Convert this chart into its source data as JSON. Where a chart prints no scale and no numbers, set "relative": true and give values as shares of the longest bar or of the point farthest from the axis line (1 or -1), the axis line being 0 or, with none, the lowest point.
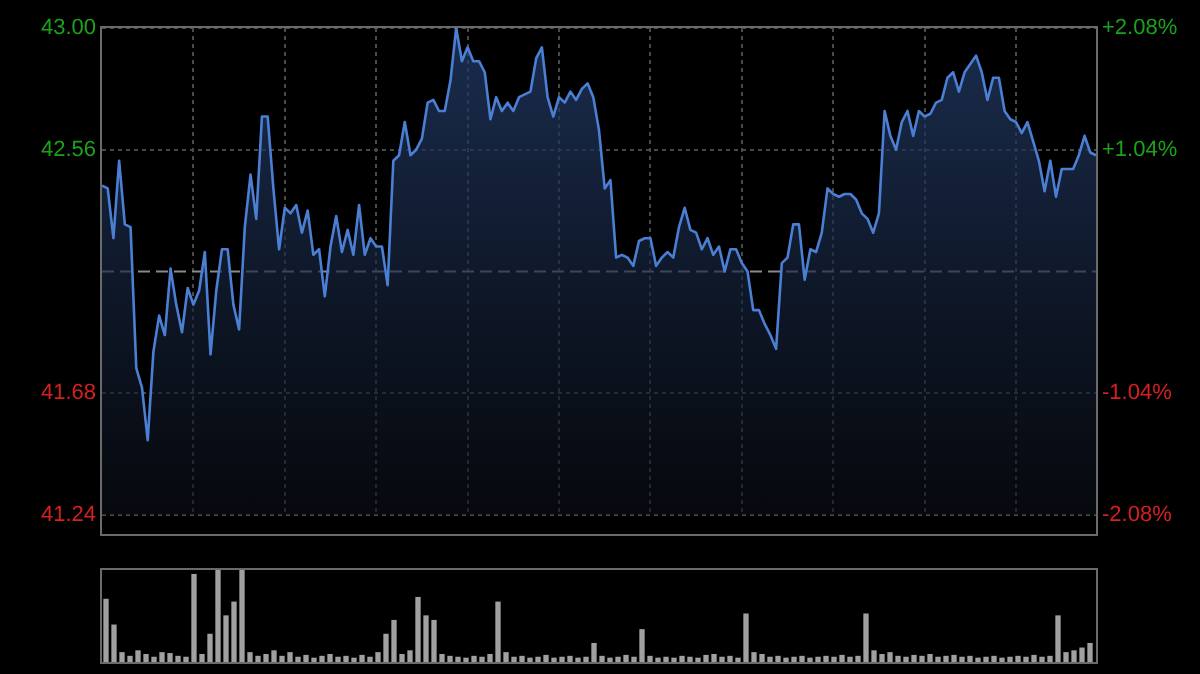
{
  "chart_data": [
    {
      "type": "area",
      "categories": [
        null,
        null,
        null,
        null,
        null,
        null,
        null,
        null,
        null,
        null,
        null,
        null,
        null,
        null,
        null,
        null,
        null,
        null,
        null,
        null,
        null,
        null,
        null,
        null,
        null,
        null,
        null,
        null,
        null,
        null,
        null,
        null,
        null,
        null,
        null,
        null,
        null,
        null,
        null,
        null,
        null,
        null,
        null,
        null,
        null,
        null,
        null,
        null,
        null,
        null,
        null,
        null,
        null,
        null,
        null,
        null,
        null,
        null,
        null,
        null,
        null,
        null,
        null,
        null,
        null,
        null,
        null,
        null,
        null,
        null,
        null,
        null,
        null,
        null,
        null,
        null,
        null,
        null,
        null,
        null,
        null,
        null,
        null,
        null,
        null,
        null,
        null,
        null,
        null,
        null,
        null,
        null,
        null,
        null,
        null,
        null,
        null,
        null,
        null,
        null,
        null,
        null,
        null,
        null,
        null,
        null,
        null,
        null,
        null,
        null,
        null,
        null,
        null,
        null,
        null,
        null,
        null,
        null,
        null,
        null,
        null,
        null,
        null,
        null,
        null,
        null,
        null,
        null,
        null,
        null,
        null,
        null,
        null,
        null,
        null,
        null,
        null,
        null,
        null,
        null,
        null,
        null,
        null,
        null,
        null,
        null,
        null,
        null,
        null,
        null,
        null,
        null,
        null,
        null,
        null,
        null,
        null,
        null,
        null,
        null,
        null,
        null,
        null,
        null,
        null,
        null,
        null,
        null,
        null,
        null,
        null,
        null,
        null,
        null,
        null
      ],
      "series": [
        {
          "color": "#4a7fd4",
          "values": [
            42.43,
            42.42,
            42.24,
            42.52,
            42.29,
            42.28,
            41.77,
            41.7,
            41.51,
            41.83,
            41.96,
            41.89,
            42.13,
            42.0,
            41.9,
            42.06,
            42.0,
            42.05,
            42.19,
            41.82,
            42.05,
            42.2,
            42.2,
            42.0,
            41.91,
            42.28,
            42.47,
            42.31,
            42.68,
            42.68,
            42.42,
            42.2,
            42.35,
            42.33,
            42.36,
            42.26,
            42.34,
            42.18,
            42.2,
            42.03,
            42.21,
            42.32,
            42.19,
            42.27,
            42.18,
            42.36,
            42.18,
            42.24,
            42.21,
            42.21,
            42.07,
            42.52,
            42.54,
            42.66,
            42.54,
            42.56,
            42.6,
            42.73,
            42.74,
            42.7,
            42.7,
            42.81,
            43.0,
            42.88,
            42.93,
            42.88,
            42.88,
            42.84,
            42.67,
            42.75,
            42.7,
            42.73,
            42.7,
            42.75,
            42.76,
            42.77,
            42.89,
            42.93,
            42.75,
            42.68,
            42.75,
            42.73,
            42.77,
            42.74,
            42.78,
            42.8,
            42.75,
            42.63,
            42.42,
            42.45,
            42.17,
            42.18,
            42.17,
            42.14,
            42.23,
            42.24,
            42.24,
            42.14,
            42.17,
            42.19,
            42.17,
            42.28,
            42.35,
            42.27,
            42.26,
            42.2,
            42.24,
            42.18,
            42.21,
            42.12,
            42.2,
            42.2,
            42.15,
            42.12,
            41.98,
            41.98,
            41.93,
            41.89,
            41.84,
            42.15,
            42.17,
            42.29,
            42.29,
            42.09,
            42.2,
            42.19,
            42.26,
            42.42,
            42.4,
            42.39,
            42.4,
            42.4,
            42.38,
            42.33,
            42.31,
            42.26,
            42.33,
            42.7,
            42.61,
            42.56,
            42.66,
            42.7,
            42.61,
            42.7,
            42.68,
            42.69,
            42.73,
            42.74,
            42.82,
            42.84,
            42.77,
            42.84,
            42.87,
            42.9,
            42.84,
            42.74,
            42.82,
            42.82,
            42.7,
            42.67,
            42.66,
            42.62,
            42.66,
            42.59,
            42.52,
            42.41,
            42.52,
            42.39,
            42.49,
            42.49,
            42.49,
            42.54,
            42.61,
            42.55,
            42.54
          ]
        }
      ],
      "ylim": [
        41.24,
        43
      ],
      "yticks": [
        {
          "value": 41.24,
          "label": "41.24"
        },
        {
          "value": 41.68,
          "label": "41.68"
        },
        {
          "value": 42.56,
          "label": "42.56"
        },
        {
          "value": 43,
          "label": "43.00"
        }
      ],
      "y2lim": [
        -2.08,
        2.08
      ],
      "y2ticks": [
        {
          "value": -2.08,
          "label": "-2.08%"
        },
        {
          "value": -1.04,
          "label": "-1.04%"
        },
        {
          "value": 1.04,
          "label": "+1.04%"
        },
        {
          "value": 2.08,
          "label": "+2.08%"
        }
      ],
      "ref_lines": [
        {
          "axis": "y",
          "value": 42.12,
          "line_style": "dashed",
          "color": "#8a8a8a"
        }
      ],
      "grid": true,
      "legend": false,
      "marker": "none",
      "line_style": "solid"
    },
    {
      "type": "bar",
      "relative": true,
      "color": "#a0a0a0",
      "categories": [
        null,
        null,
        null,
        null,
        null,
        null,
        null,
        null,
        null,
        null,
        null,
        null,
        null,
        null,
        null,
        null,
        null,
        null,
        null,
        null,
        null,
        null,
        null,
        null,
        null,
        null,
        null,
        null,
        null,
        null,
        null,
        null,
        null,
        null,
        null,
        null,
        null,
        null,
        null,
        null,
        null,
        null,
        null,
        null,
        null,
        null,
        null,
        null,
        null,
        null,
        null,
        null,
        null,
        null,
        null,
        null,
        null,
        null,
        null,
        null,
        null,
        null,
        null,
        null,
        null,
        null,
        null,
        null,
        null,
        null,
        null,
        null,
        null,
        null,
        null,
        null,
        null,
        null,
        null,
        null,
        null,
        null,
        null,
        null,
        null,
        null,
        null,
        null,
        null,
        null,
        null,
        null,
        null,
        null,
        null,
        null,
        null,
        null,
        null,
        null,
        null,
        null,
        null,
        null,
        null,
        null,
        null,
        null,
        null,
        null,
        null,
        null,
        null,
        null,
        null,
        null,
        null,
        null,
        null,
        null,
        null,
        null,
        null,
        null
      ],
      "values": [
        0.68,
        0.4,
        0.1,
        0.06,
        0.12,
        0.08,
        0.05,
        0.1,
        0.09,
        0.06,
        0.05,
        0.95,
        0.08,
        0.3,
        1.0,
        0.5,
        0.65,
        1.0,
        0.1,
        0.06,
        0.08,
        0.12,
        0.06,
        0.1,
        0.05,
        0.07,
        0.04,
        0.06,
        0.08,
        0.05,
        0.06,
        0.04,
        0.07,
        0.05,
        0.1,
        0.3,
        0.45,
        0.08,
        0.12,
        0.7,
        0.5,
        0.45,
        0.08,
        0.06,
        0.05,
        0.04,
        0.06,
        0.05,
        0.08,
        0.65,
        0.1,
        0.05,
        0.06,
        0.04,
        0.05,
        0.07,
        0.04,
        0.05,
        0.06,
        0.04,
        0.05,
        0.2,
        0.06,
        0.04,
        0.05,
        0.07,
        0.05,
        0.35,
        0.06,
        0.04,
        0.05,
        0.04,
        0.06,
        0.05,
        0.04,
        0.07,
        0.08,
        0.05,
        0.06,
        0.04,
        0.52,
        0.1,
        0.08,
        0.05,
        0.06,
        0.04,
        0.05,
        0.06,
        0.04,
        0.05,
        0.06,
        0.05,
        0.07,
        0.05,
        0.06,
        0.52,
        0.12,
        0.08,
        0.1,
        0.06,
        0.05,
        0.07,
        0.06,
        0.08,
        0.05,
        0.06,
        0.07,
        0.05,
        0.06,
        0.04,
        0.05,
        0.06,
        0.04,
        0.05,
        0.06,
        0.05,
        0.07,
        0.05,
        0.06,
        0.5,
        0.1,
        0.12,
        0.15,
        0.2
      ],
      "legend": false
    }
  ]
}
